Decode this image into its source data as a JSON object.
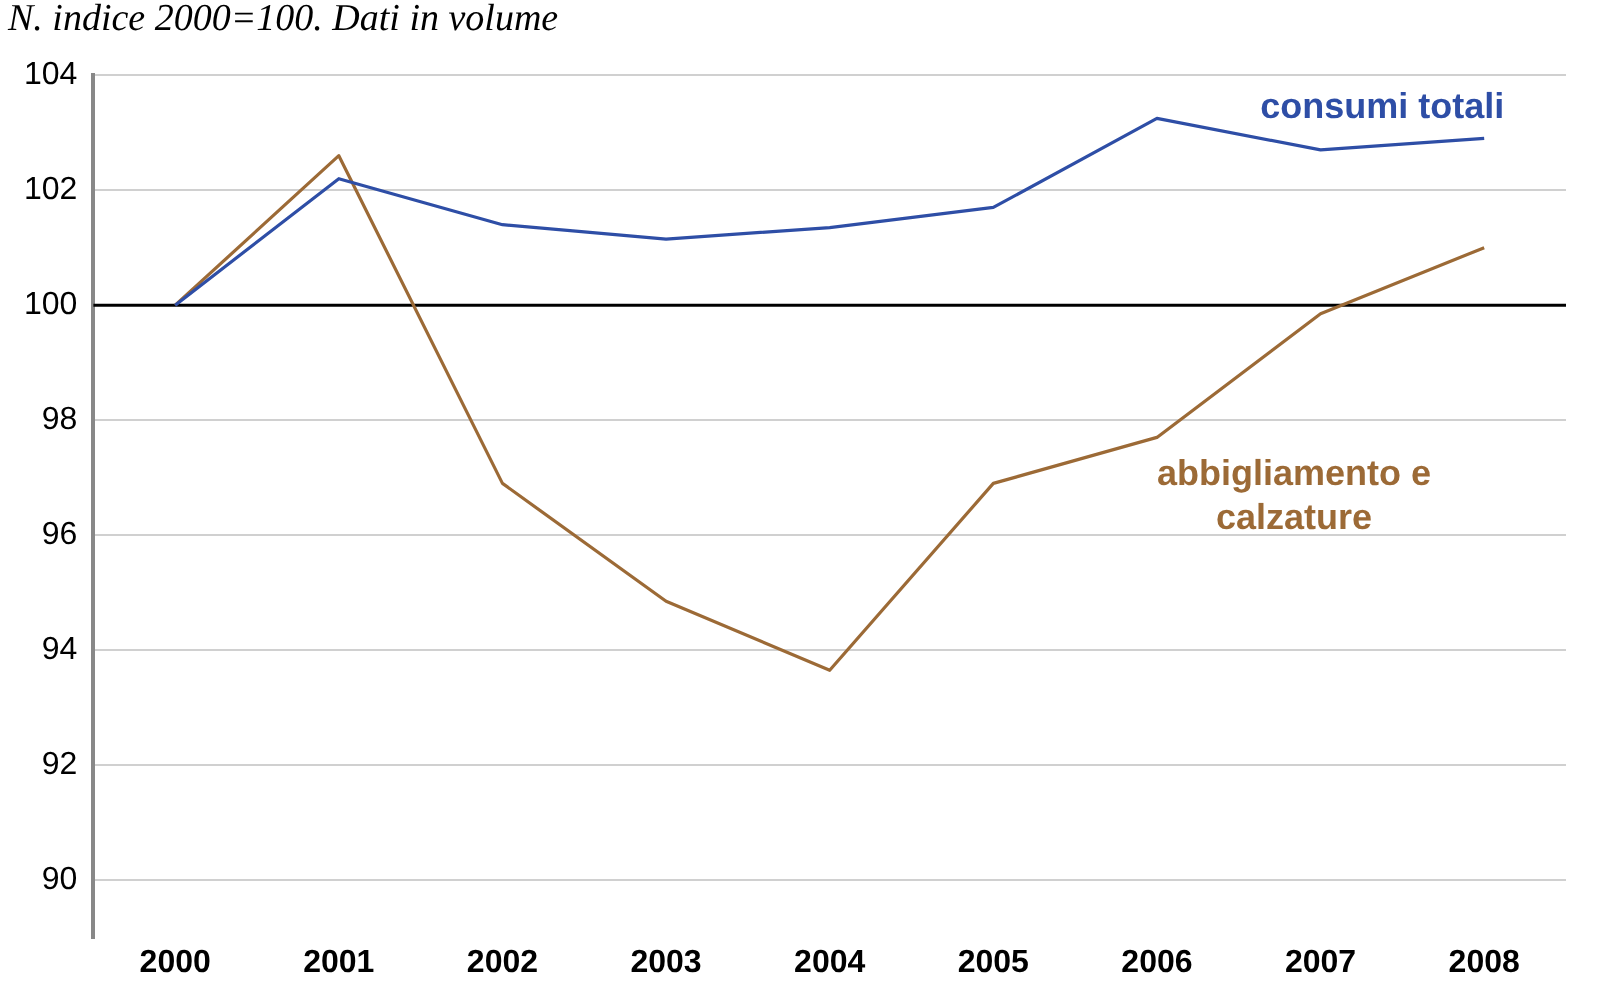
{
  "chart_data": {
    "type": "line",
    "title": "N. indice 2000=100. Dati in volume",
    "categories": [
      "2000",
      "2001",
      "2002",
      "2003",
      "2004",
      "2005",
      "2006",
      "2007",
      "2008"
    ],
    "series": [
      {
        "name": "consumi totali",
        "color": "#2e4ea6",
        "values": [
          100,
          102.2,
          101.4,
          101.15,
          101.35,
          101.7,
          103.25,
          102.7,
          102.9
        ]
      },
      {
        "name": "abbigliamento e calzature",
        "color": "#9c6a36",
        "values": [
          100,
          102.6,
          96.9,
          94.85,
          93.65,
          96.9,
          97.7,
          99.85,
          101.0
        ]
      }
    ],
    "ref_lines": [
      {
        "axis": "y",
        "value": 100,
        "color": "#000000"
      }
    ],
    "ylim": [
      89,
      104
    ],
    "yticks": [
      90,
      92,
      94,
      96,
      98,
      100,
      102,
      104
    ],
    "grid": "y",
    "legend": false,
    "marker": "none",
    "line_style": "solid"
  }
}
